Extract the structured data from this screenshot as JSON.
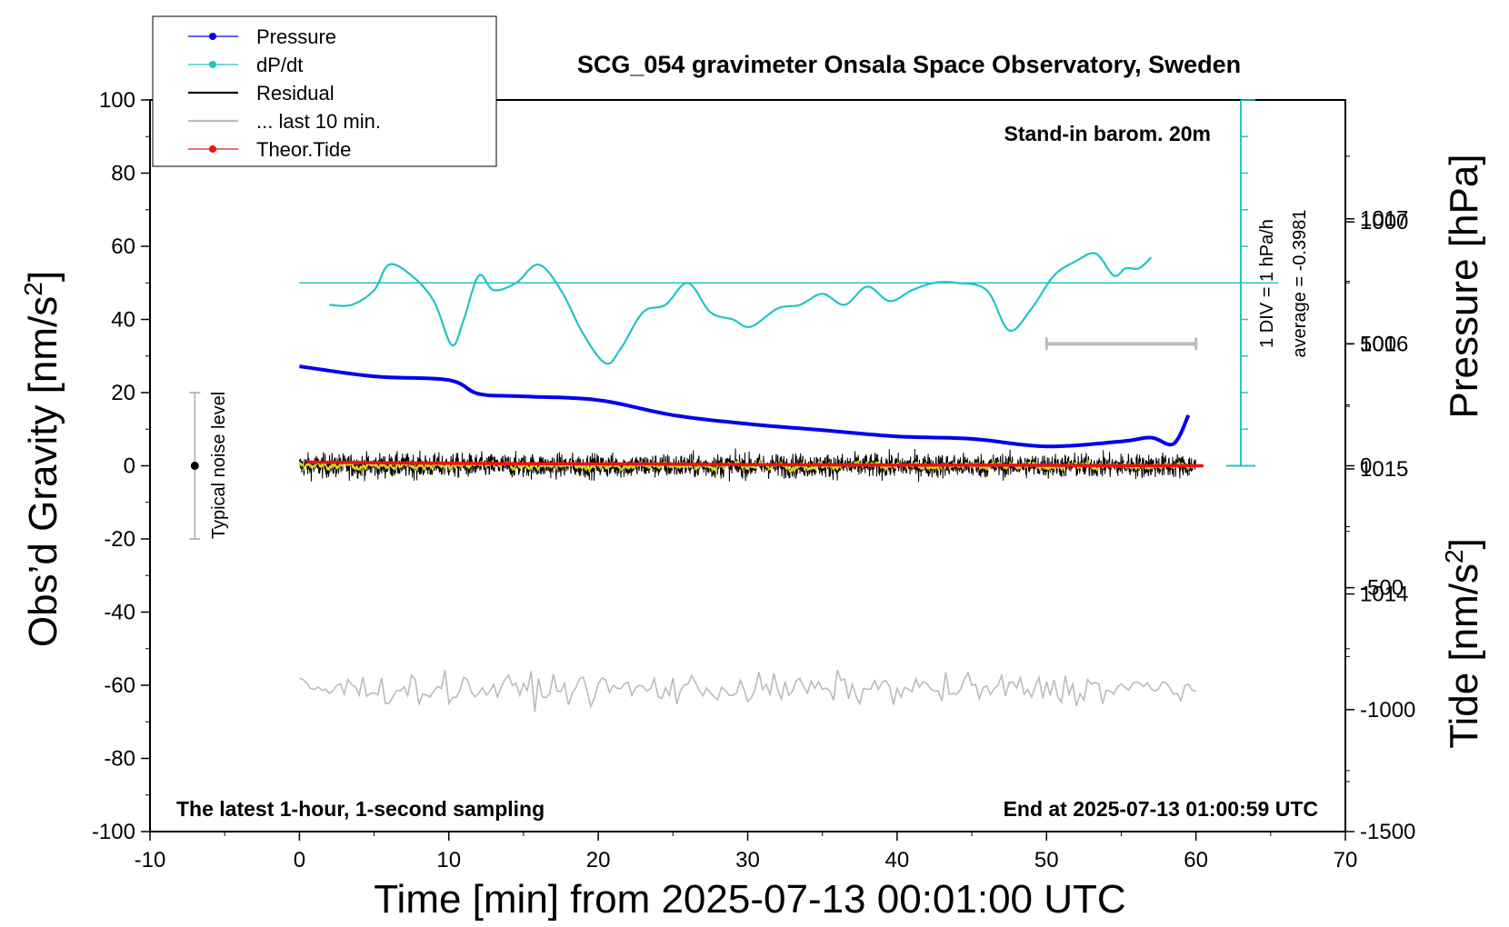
{
  "chart_data": {
    "type": "line",
    "title": "SCG_054 gravimeter Onsala Space Observatory, Sweden",
    "xlabel": "Time [min] from 2025-07-13 00:01:00 UTC",
    "ylabel_left": "Obs’d Gravity [nm/s",
    "ylabel_left_unit_close": "]",
    "ylabel_pressure": "Pressure [hPa]",
    "ylabel_tide": "Tide [nm/s",
    "ylabel_tide_unit_close": "]",
    "superscript": "2",
    "xlim": [
      -10,
      70
    ],
    "ylim": [
      -100,
      100
    ],
    "pressure_lim": [
      1012.1,
      1017.95
    ],
    "tide_lim": [
      -1500,
      1500
    ],
    "x_ticks": [
      "-10",
      "0",
      "10",
      "20",
      "30",
      "40",
      "50",
      "60",
      "70"
    ],
    "y_ticks_left": [
      "100",
      "80",
      "60",
      "40",
      "20",
      "0",
      "-20",
      "-40",
      "-60",
      "-80",
      "-100"
    ],
    "y_ticks_pressure": [
      "1017",
      "1016",
      "1015",
      "1014"
    ],
    "y_ticks_tide": [
      "1000",
      "500",
      "0",
      "-500",
      "-1000",
      "-1500"
    ],
    "annotations": {
      "standin": "Stand-in barom. 20m",
      "div": "1 DIV = 1 hPa/h",
      "average": "average = -0.3981",
      "noise": "Typical noise level",
      "bottom_left": "The latest 1-hour, 1-second sampling",
      "bottom_right": "End at 2025-07-13 01:00:59 UTC"
    },
    "legend": [
      "Pressure",
      "dP/dt",
      "Residual",
      "... last 10 min.",
      "Theor.Tide"
    ],
    "legend_placement": "top-left, outside plot",
    "colors": {
      "pressure": "#0000ee",
      "dpdt": "#22c4c4",
      "residual": "#000000",
      "last10": "#bbbbbb",
      "residual_smooth": "#d8d820",
      "tide": "#ee1111"
    },
    "series": [
      {
        "name": "Pressure",
        "axis": "pressure",
        "x": [
          0,
          5,
          10,
          12,
          15,
          20,
          25,
          30,
          35,
          40,
          45,
          50,
          55,
          57,
          58.5,
          59.5
        ],
        "values": [
          1015.82,
          1015.74,
          1015.71,
          1015.6,
          1015.58,
          1015.55,
          1015.43,
          1015.36,
          1015.31,
          1015.26,
          1015.24,
          1015.18,
          1015.22,
          1015.25,
          1015.2,
          1015.43
        ]
      },
      {
        "name": "dP/dt",
        "axis": "gravity",
        "x": [
          2,
          3.5,
          5,
          6,
          7.5,
          9,
          10.2,
          11,
          12,
          13,
          14.5,
          16,
          17.5,
          19,
          20.5,
          21.5,
          23,
          24.5,
          26,
          27.5,
          29,
          30.2,
          32,
          33.5,
          35,
          36.5,
          38,
          39.5,
          41,
          42.5,
          44,
          46,
          47.5,
          49,
          50.5,
          52,
          53.3,
          54.5,
          55.3,
          56.2,
          57
        ],
        "values": [
          44,
          44,
          48,
          55,
          52,
          45,
          33,
          40,
          52,
          48,
          50,
          55,
          48,
          36,
          28,
          32,
          42,
          44,
          50,
          42,
          40,
          38,
          43,
          44,
          47,
          44,
          49,
          45,
          48,
          50,
          50,
          48,
          37,
          43,
          52,
          56,
          58,
          52,
          54,
          54,
          57
        ]
      },
      {
        "name": "Residual",
        "axis": "gravity",
        "x_range": [
          0,
          60
        ],
        "center": 0,
        "amplitude": 3
      },
      {
        "name": "... last 10 min.",
        "axis": "gravity",
        "x_range": [
          0,
          60
        ],
        "center": -61,
        "amplitude": 3
      },
      {
        "name": "Theor.Tide",
        "axis": "tide",
        "x": [
          0.5,
          10,
          20,
          30,
          40,
          50,
          60.5
        ],
        "values": [
          15,
          10,
          8,
          5,
          3,
          2,
          0
        ]
      }
    ],
    "noise_bar": {
      "x": -7,
      "center": 0,
      "half_range": 20
    },
    "last10_bracket": {
      "x": [
        50,
        60
      ],
      "tide_value": 500
    },
    "dpdt_scale_bar": {
      "x": 63,
      "top_gravity": 100,
      "bottom_gravity": 0,
      "divisions": 10,
      "zero_line_gravity": 50
    }
  }
}
